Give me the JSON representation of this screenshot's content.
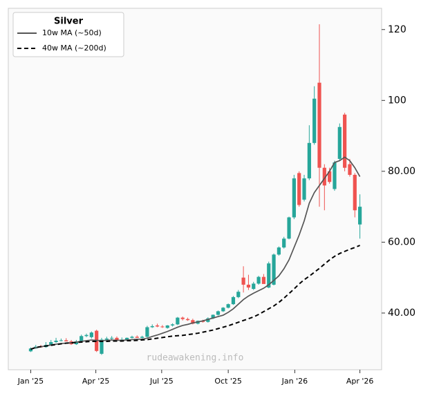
{
  "chart_data": {
    "type": "candlestick",
    "legend_title": "Silver",
    "legend": "upper left",
    "annotations": [
      "rudeawakening.info"
    ],
    "up_color": "#26a69a",
    "down_color": "#ef5350",
    "x": [
      0,
      7,
      14,
      21,
      28,
      35,
      42,
      49,
      56,
      63,
      70,
      77,
      84,
      91,
      98,
      105,
      112,
      119,
      126,
      133,
      140,
      147,
      154,
      161,
      168,
      175,
      182,
      189,
      196,
      203,
      210,
      217,
      224,
      231,
      238,
      245,
      252,
      259,
      266,
      273,
      280,
      287,
      294,
      301,
      308,
      315,
      322,
      329,
      336,
      343,
      350,
      357,
      364,
      371,
      378,
      385,
      392,
      399,
      406,
      413,
      420,
      427,
      434,
      441,
      448,
      455
    ],
    "open": [
      29.2,
      30.0,
      30.5,
      30.4,
      31.0,
      31.8,
      32.2,
      32.3,
      32.0,
      31.2,
      32.0,
      33.5,
      33.2,
      35.0,
      28.5,
      32.5,
      32.8,
      33.0,
      32.3,
      32.5,
      33.0,
      33.3,
      33.0,
      33.3,
      36.0,
      36.5,
      36.2,
      35.8,
      36.5,
      36.8,
      38.7,
      38.3,
      38.0,
      37.0,
      37.8,
      37.5,
      38.5,
      39.5,
      40.5,
      41.5,
      42.5,
      44.5,
      50.0,
      48.0,
      46.8,
      48.3,
      50.2,
      47.2,
      48.0,
      56.5,
      58.5,
      61.0,
      67.0,
      79.5,
      72.0,
      78.0,
      88.0,
      105.0,
      81.0,
      80.0,
      75.0,
      83.5,
      96.0,
      82.0,
      79.0,
      65.0
    ],
    "high": [
      30.3,
      31.0,
      31.0,
      31.8,
      32.4,
      33.0,
      32.8,
      32.9,
      32.4,
      32.4,
      33.9,
      34.2,
      34.8,
      35.3,
      33.0,
      33.3,
      33.5,
      33.4,
      33.1,
      33.1,
      33.6,
      33.7,
      33.6,
      36.4,
      36.8,
      37.0,
      36.6,
      36.6,
      37.1,
      38.9,
      39.0,
      38.7,
      38.4,
      37.9,
      38.1,
      38.8,
      39.6,
      40.7,
      41.7,
      42.7,
      44.8,
      46.5,
      53.2,
      50.8,
      48.8,
      50.5,
      51.0,
      54.5,
      56.8,
      58.8,
      61.5,
      67.2,
      79.0,
      80.0,
      79.0,
      93.0,
      104.0,
      121.5,
      82.0,
      81.0,
      83.0,
      93.5,
      96.5,
      83.5,
      79.5,
      73.5
    ],
    "low": [
      29.0,
      29.9,
      30.3,
      30.2,
      30.8,
      31.6,
      32.0,
      32.0,
      31.0,
      31.0,
      31.8,
      33.2,
      32.8,
      29.0,
      28.2,
      32.2,
      32.5,
      32.0,
      32.0,
      32.3,
      32.8,
      33.0,
      32.8,
      33.1,
      35.8,
      36.0,
      35.8,
      35.6,
      36.2,
      36.6,
      37.9,
      37.8,
      36.8,
      36.8,
      37.3,
      37.3,
      38.3,
      39.3,
      40.3,
      41.3,
      42.3,
      44.2,
      45.8,
      46.5,
      46.5,
      48.0,
      48.8,
      47.0,
      47.8,
      56.2,
      58.2,
      60.8,
      66.5,
      70.0,
      71.5,
      77.5,
      87.5,
      70.0,
      69.0,
      76.5,
      74.5,
      83.0,
      80.0,
      78.5,
      67.0,
      61.0
    ],
    "close": [
      30.0,
      30.5,
      30.4,
      31.0,
      31.8,
      32.2,
      32.3,
      32.0,
      31.2,
      32.0,
      33.5,
      33.8,
      34.5,
      29.3,
      32.5,
      32.8,
      33.0,
      32.3,
      32.5,
      33.0,
      33.3,
      33.0,
      33.3,
      36.0,
      36.3,
      36.2,
      36.0,
      36.5,
      36.8,
      38.7,
      38.3,
      38.0,
      37.0,
      37.8,
      37.5,
      38.5,
      39.5,
      40.5,
      41.5,
      42.5,
      44.5,
      46.0,
      48.0,
      47.2,
      48.3,
      50.2,
      48.2,
      54.0,
      56.5,
      58.5,
      61.0,
      67.0,
      78.0,
      70.5,
      78.0,
      88.0,
      100.5,
      81.0,
      76.0,
      77.0,
      82.5,
      92.5,
      81.0,
      79.0,
      69.0,
      70.0
    ],
    "series": [
      {
        "name": "10w MA (~50d)",
        "color": "#555555",
        "style": "solid",
        "values": [
          29.8,
          30.2,
          30.5,
          30.7,
          31.0,
          31.2,
          31.4,
          31.5,
          31.6,
          31.8,
          32.0,
          32.2,
          32.4,
          32.3,
          32.2,
          32.3,
          32.4,
          32.3,
          32.3,
          32.4,
          32.5,
          32.6,
          32.6,
          32.9,
          33.4,
          33.8,
          34.3,
          34.8,
          35.4,
          36.0,
          36.5,
          36.8,
          37.2,
          37.5,
          37.8,
          38.2,
          38.6,
          39.0,
          39.4,
          40.2,
          41.2,
          42.5,
          43.8,
          44.8,
          45.6,
          46.3,
          47.0,
          48.0,
          49.2,
          50.5,
          52.5,
          55.0,
          58.5,
          62.0,
          66.0,
          71.0,
          74.0,
          76.0,
          78.0,
          80.0,
          82.5,
          83.0,
          84.0,
          83.0,
          81.0,
          78.5
        ]
      },
      {
        "name": "40w MA (~200d)",
        "color": "#000000",
        "style": "dashed",
        "values": [
          29.8,
          30.3,
          30.5,
          30.7,
          30.9,
          31.1,
          31.3,
          31.5,
          31.6,
          31.7,
          31.8,
          31.9,
          32.0,
          32.0,
          32.0,
          32.0,
          32.1,
          32.1,
          32.1,
          32.2,
          32.2,
          32.3,
          32.4,
          32.5,
          32.7,
          32.9,
          33.1,
          33.3,
          33.5,
          33.6,
          33.7,
          33.9,
          34.1,
          34.3,
          34.6,
          34.9,
          35.2,
          35.6,
          36.0,
          36.4,
          36.9,
          37.4,
          37.9,
          38.4,
          38.9,
          39.6,
          40.4,
          41.2,
          42.0,
          43.0,
          44.2,
          45.5,
          46.8,
          48.2,
          49.4,
          50.4,
          51.5,
          52.6,
          53.8,
          55.0,
          56.0,
          56.8,
          57.4,
          58.0,
          58.5,
          59.1
        ]
      }
    ],
    "xlim": [
      -31,
      485
    ],
    "xticks": [
      {
        "value": 0,
        "label": "Jan '25"
      },
      {
        "value": 90,
        "label": "Apr '25"
      },
      {
        "value": 181,
        "label": "Jul '25"
      },
      {
        "value": 273,
        "label": "Oct '25"
      },
      {
        "value": 365,
        "label": "Jan '26"
      },
      {
        "value": 455,
        "label": "Apr '26"
      }
    ],
    "ylim": [
      24,
      126
    ],
    "yticks": [
      {
        "value": 40,
        "label": "40.00"
      },
      {
        "value": 60,
        "label": "60.00"
      },
      {
        "value": 80,
        "label": "80.00"
      },
      100,
      120
    ]
  }
}
